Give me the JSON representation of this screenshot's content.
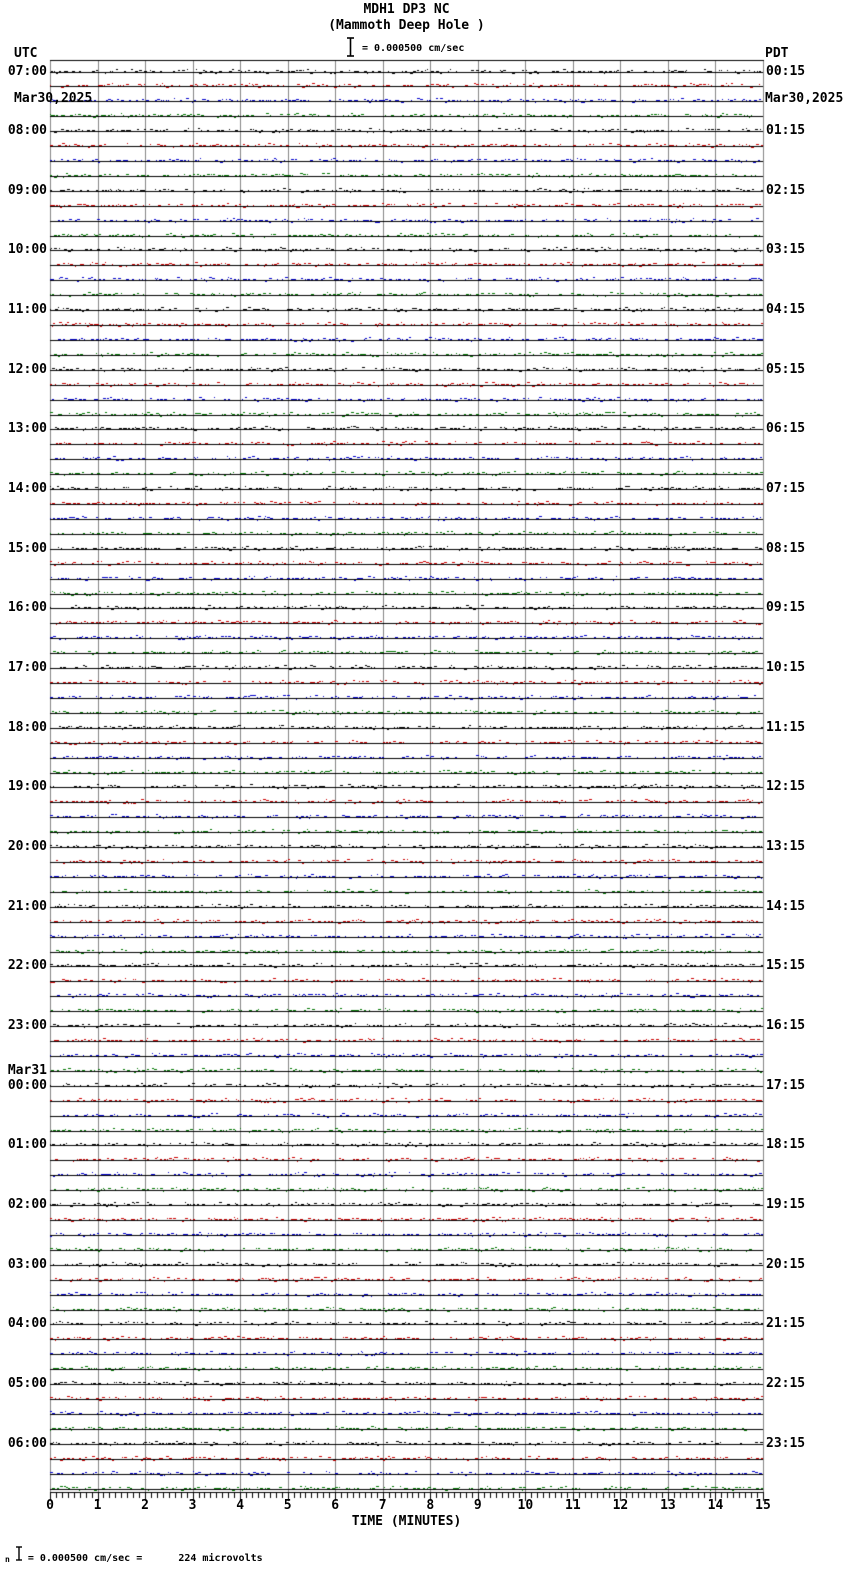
{
  "header": {
    "title": "MDH1 DP3 NC",
    "subtitle": "(Mammoth Deep Hole )",
    "scale_label": "= 0.000500 cm/sec",
    "left_tz": "UTC",
    "left_date": "Mar30,2025",
    "right_tz": "PDT",
    "right_date": "Mar30,2025"
  },
  "xaxis": {
    "label": "TIME (MINUTES)",
    "ticks": [
      "0",
      "1",
      "2",
      "3",
      "4",
      "5",
      "6",
      "7",
      "8",
      "9",
      "10",
      "11",
      "12",
      "13",
      "14",
      "15"
    ]
  },
  "footer": {
    "prefix": "n",
    "text": "= 0.000500 cm/sec =      224 microvolts"
  },
  "chart_data": {
    "type": "line",
    "subtype": "helicorder-seismogram",
    "title": "MDH1 DP3 NC (Mammoth Deep Hole )",
    "station": "MDH1 DP3 NC",
    "station_description": "Mammoth Deep Hole",
    "scale": "0.000500 cm/sec = 224 microvolts",
    "xlabel": "TIME (MINUTES)",
    "xlim": [
      0,
      15
    ],
    "minutes_per_line": 15,
    "minor_ticks_per_minute": 8,
    "grid": "vertical gray line each minute",
    "trace_colors": [
      "#000000",
      "#cc0000",
      "#0000cc",
      "#007700"
    ],
    "traces_per_hour": 4,
    "amplitude": "flat low-level background noise on all 96 quarter-hour traces; no visible seismic events",
    "left_axis_tz": "UTC",
    "right_axis_tz": "PDT",
    "rows": [
      {
        "utc": "07:00",
        "pdt": "00:15"
      },
      {
        "utc": "08:00",
        "pdt": "01:15"
      },
      {
        "utc": "09:00",
        "pdt": "02:15"
      },
      {
        "utc": "10:00",
        "pdt": "03:15"
      },
      {
        "utc": "11:00",
        "pdt": "04:15"
      },
      {
        "utc": "12:00",
        "pdt": "05:15"
      },
      {
        "utc": "13:00",
        "pdt": "06:15"
      },
      {
        "utc": "14:00",
        "pdt": "07:15"
      },
      {
        "utc": "15:00",
        "pdt": "08:15"
      },
      {
        "utc": "16:00",
        "pdt": "09:15"
      },
      {
        "utc": "17:00",
        "pdt": "10:15"
      },
      {
        "utc": "18:00",
        "pdt": "11:15"
      },
      {
        "utc": "19:00",
        "pdt": "12:15"
      },
      {
        "utc": "20:00",
        "pdt": "13:15"
      },
      {
        "utc": "21:00",
        "pdt": "14:15"
      },
      {
        "utc": "22:00",
        "pdt": "15:15"
      },
      {
        "utc": "23:00",
        "pdt": "16:15"
      },
      {
        "utc": "00:00",
        "pdt": "17:15",
        "date_marker": "Mar31"
      },
      {
        "utc": "01:00",
        "pdt": "18:15"
      },
      {
        "utc": "02:00",
        "pdt": "19:15"
      },
      {
        "utc": "03:00",
        "pdt": "20:15"
      },
      {
        "utc": "04:00",
        "pdt": "21:15"
      },
      {
        "utc": "05:00",
        "pdt": "22:15"
      },
      {
        "utc": "06:00",
        "pdt": "23:15"
      }
    ]
  }
}
